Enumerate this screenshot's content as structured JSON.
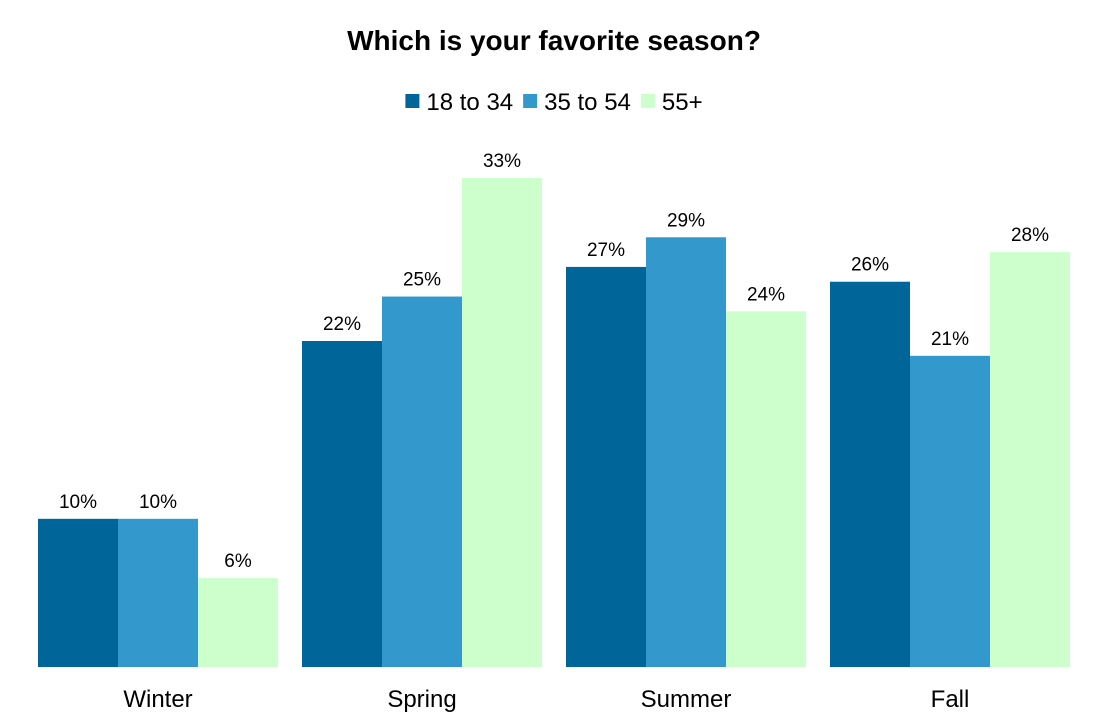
{
  "chart_data": {
    "type": "bar",
    "title": "Which is your favorite season?",
    "categories": [
      "Winter",
      "Spring",
      "Summer",
      "Fall"
    ],
    "series": [
      {
        "name": "18 to 34",
        "color": "#006699",
        "values": [
          10,
          22,
          27,
          26
        ],
        "labels": [
          "10%",
          "22%",
          "27%",
          "26%"
        ]
      },
      {
        "name": "35 to 54",
        "color": "#3399CC",
        "values": [
          10,
          25,
          29,
          21
        ],
        "labels": [
          "10%",
          "25%",
          "29%",
          "21%"
        ]
      },
      {
        "name": "55+",
        "color": "#CCFFCC",
        "values": [
          6,
          33,
          24,
          28
        ],
        "labels": [
          "6%",
          "33%",
          "24%",
          "28%"
        ]
      }
    ],
    "ylim": [
      0,
      33
    ],
    "value_unit": "%",
    "grid": false,
    "legend_position": "top-center"
  }
}
